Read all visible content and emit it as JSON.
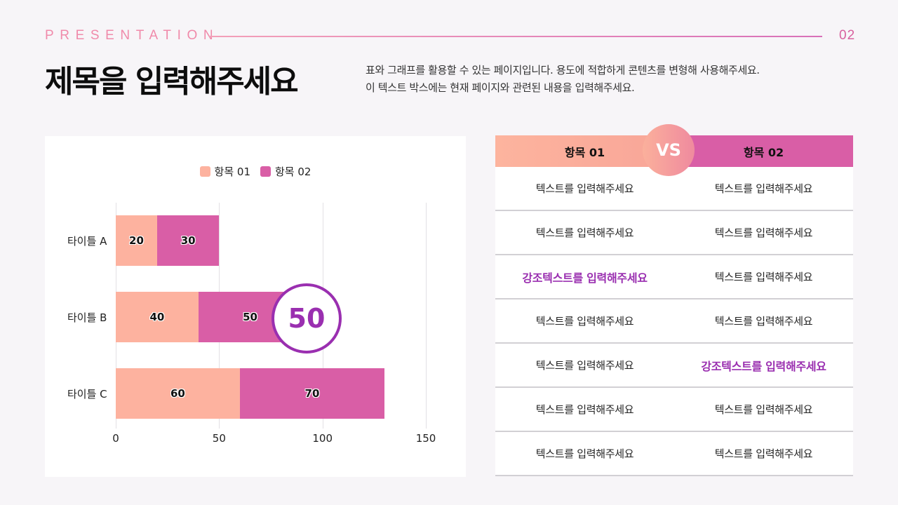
{
  "header": {
    "brand": "PRESENTATION",
    "page_number": "02",
    "title": "제목을 입력해주세요",
    "description": [
      "표와 그래프를 활용할 수 있는 페이지입니다. 용도에 적합하게 콘텐츠를 변형해 사용해주세요.",
      "이 텍스트 박스에는 현재 페이지와 관련된 내용을 입력해주세요."
    ]
  },
  "colors": {
    "series1": "#fdb29f",
    "series2": "#d95ea6",
    "accent": "#9a2fb0",
    "brand": "#f08aaa"
  },
  "chart_data": {
    "type": "bar",
    "orientation": "horizontal",
    "stacked": true,
    "title": "",
    "categories": [
      "타이틀 A",
      "타이틀 B",
      "타이틀 C"
    ],
    "series": [
      {
        "name": "항목 01",
        "values": [
          20,
          40,
          60
        ],
        "color": "#fdb29f"
      },
      {
        "name": "항목 02",
        "values": [
          30,
          50,
          70
        ],
        "color": "#d95ea6"
      }
    ],
    "xlabel": "",
    "ylabel": "",
    "xlim": [
      0,
      150
    ],
    "x_ticks": [
      "0",
      "50",
      "100",
      "150"
    ],
    "grid": "vertical",
    "legend_position": "top",
    "data_labels": true,
    "annotation": {
      "text": "50",
      "target": "타이틀 B / 항목 02",
      "shape": "circle"
    }
  },
  "table": {
    "vs_label": "VS",
    "headers": [
      "항목 01",
      "항목 02"
    ],
    "rows": [
      [
        {
          "text": "텍스트를 입력해주세요",
          "emph": false
        },
        {
          "text": "텍스트를 입력해주세요",
          "emph": false
        }
      ],
      [
        {
          "text": "텍스트를 입력해주세요",
          "emph": false
        },
        {
          "text": "텍스트를 입력해주세요",
          "emph": false
        }
      ],
      [
        {
          "text": "강조텍스트를 입력해주세요",
          "emph": true
        },
        {
          "text": "텍스트를 입력해주세요",
          "emph": false
        }
      ],
      [
        {
          "text": "텍스트를 입력해주세요",
          "emph": false
        },
        {
          "text": "텍스트를 입력해주세요",
          "emph": false
        }
      ],
      [
        {
          "text": "텍스트를 입력해주세요",
          "emph": false
        },
        {
          "text": "강조텍스트를 입력해주세요",
          "emph": true
        }
      ],
      [
        {
          "text": "텍스트를 입력해주세요",
          "emph": false
        },
        {
          "text": "텍스트를 입력해주세요",
          "emph": false
        }
      ],
      [
        {
          "text": "텍스트를 입력해주세요",
          "emph": false
        },
        {
          "text": "텍스트를 입력해주세요",
          "emph": false
        }
      ]
    ]
  }
}
